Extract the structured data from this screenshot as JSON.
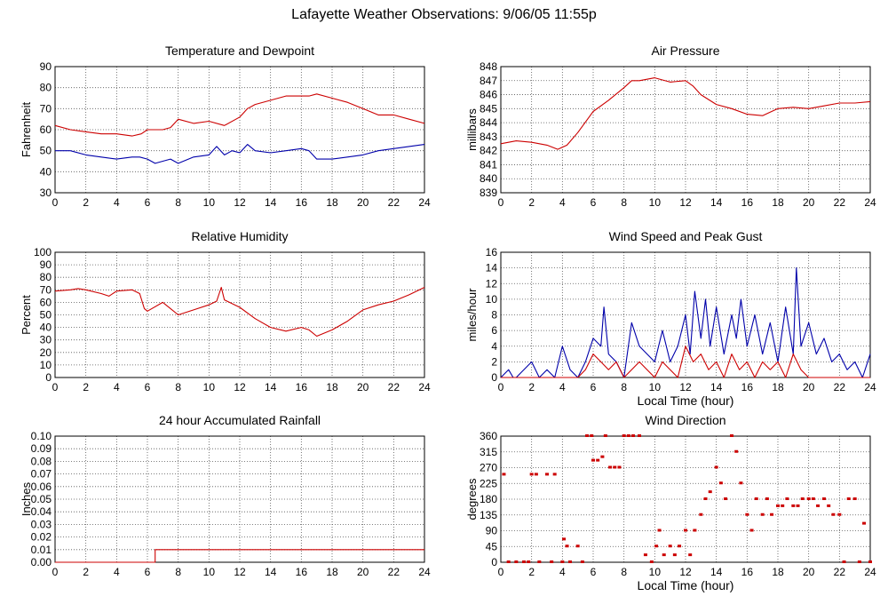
{
  "page_title": "Lafayette Weather Observations: 9/06/05 11:55p",
  "colors": {
    "red": "#cc0000",
    "blue": "#0000aa",
    "grid": "#555555",
    "axis": "#000000"
  },
  "chart_data": [
    {
      "id": "temp",
      "type": "line",
      "title": "Temperature and Dewpoint",
      "xlabel": "",
      "ylabel": "Fahrenheit",
      "xlim": [
        0,
        24
      ],
      "ylim": [
        30,
        90
      ],
      "xticks": [
        0,
        2,
        4,
        6,
        8,
        10,
        12,
        14,
        16,
        18,
        20,
        22,
        24
      ],
      "yticks": [
        30,
        40,
        50,
        60,
        70,
        80,
        90
      ],
      "grid": true,
      "series": [
        {
          "color": "#cc0000",
          "x": [
            0,
            1,
            2,
            3,
            4,
            5,
            5.6,
            6,
            7,
            7.5,
            8,
            9,
            10,
            11,
            12,
            12.5,
            13,
            14,
            15,
            16,
            16.5,
            17,
            18,
            19,
            20,
            21,
            22,
            23,
            24
          ],
          "values": [
            62,
            60,
            59,
            58,
            58,
            57,
            58,
            60,
            60,
            61,
            65,
            63,
            64,
            62,
            66,
            70,
            72,
            74,
            76,
            76,
            76,
            77,
            75,
            73,
            70,
            67,
            67,
            65,
            63
          ]
        },
        {
          "color": "#0000aa",
          "x": [
            0,
            1,
            2,
            3,
            4,
            5,
            5.5,
            6,
            6.5,
            7,
            7.5,
            8,
            9,
            10,
            10.5,
            11,
            11.5,
            12,
            12.5,
            13,
            14,
            15,
            16,
            16.5,
            17,
            18,
            19,
            20,
            21,
            22,
            23,
            24
          ],
          "values": [
            50,
            50,
            48,
            47,
            46,
            47,
            47,
            46,
            44,
            45,
            46,
            44,
            47,
            48,
            52,
            48,
            50,
            49,
            53,
            50,
            49,
            50,
            51,
            50,
            46,
            46,
            47,
            48,
            50,
            51,
            52,
            53
          ]
        }
      ]
    },
    {
      "id": "pressure",
      "type": "line",
      "title": "Air Pressure",
      "xlabel": "",
      "ylabel": "millibars",
      "xlim": [
        0,
        24
      ],
      "ylim": [
        839,
        848
      ],
      "xticks": [
        0,
        2,
        4,
        6,
        8,
        10,
        12,
        14,
        16,
        18,
        20,
        22,
        24
      ],
      "yticks": [
        839,
        840,
        841,
        842,
        843,
        844,
        845,
        846,
        847,
        848
      ],
      "grid": true,
      "series": [
        {
          "color": "#cc0000",
          "x": [
            0,
            1,
            2,
            3,
            3.7,
            4.3,
            5,
            6,
            7,
            8,
            8.5,
            9,
            10,
            11,
            12,
            12.5,
            13,
            14,
            15,
            16,
            17,
            18,
            19,
            20,
            21,
            22,
            23,
            24
          ],
          "values": [
            842.5,
            842.7,
            842.6,
            842.4,
            842.1,
            842.4,
            843.3,
            844.8,
            845.6,
            846.5,
            847,
            847,
            847.2,
            846.9,
            847,
            846.6,
            846,
            845.3,
            845,
            844.6,
            844.5,
            845,
            845.1,
            845,
            845.2,
            845.4,
            845.4,
            845.5
          ]
        }
      ]
    },
    {
      "id": "humidity",
      "type": "line",
      "title": "Relative Humidity",
      "xlabel": "",
      "ylabel": "Percent",
      "xlim": [
        0,
        24
      ],
      "ylim": [
        0,
        100
      ],
      "xticks": [
        0,
        2,
        4,
        6,
        8,
        10,
        12,
        14,
        16,
        18,
        20,
        22,
        24
      ],
      "yticks": [
        0,
        10,
        20,
        30,
        40,
        50,
        60,
        70,
        80,
        90,
        100
      ],
      "grid": true,
      "series": [
        {
          "color": "#cc0000",
          "x": [
            0,
            1,
            1.5,
            2,
            3,
            3.5,
            4,
            5,
            5.5,
            5.8,
            6,
            7,
            7.5,
            8,
            9,
            10,
            10.5,
            10.8,
            11,
            12,
            13,
            14,
            15,
            16,
            16.5,
            17,
            18,
            19,
            20,
            21,
            22,
            23,
            24
          ],
          "values": [
            69,
            70,
            71,
            70,
            67,
            65,
            69,
            70,
            67,
            55,
            53,
            60,
            55,
            50,
            54,
            58,
            61,
            72,
            62,
            56,
            47,
            40,
            37,
            40,
            38,
            33,
            38,
            45,
            54,
            58,
            61,
            66,
            72
          ]
        }
      ]
    },
    {
      "id": "wind",
      "type": "line",
      "title": "Wind Speed and Peak Gust",
      "xlabel": "Local Time (hour)",
      "ylabel": "miles/hour",
      "xlim": [
        0,
        24
      ],
      "ylim": [
        0,
        16
      ],
      "xticks": [
        0,
        2,
        4,
        6,
        8,
        10,
        12,
        14,
        16,
        18,
        20,
        22,
        24
      ],
      "yticks": [
        0,
        2,
        4,
        6,
        8,
        10,
        12,
        14,
        16
      ],
      "grid": true,
      "series": [
        {
          "color": "#0000aa",
          "x": [
            0,
            0.5,
            0.8,
            1,
            2,
            2.5,
            3,
            3.5,
            4,
            4.5,
            5,
            5.5,
            6,
            6.5,
            6.7,
            7,
            7.5,
            8,
            8.5,
            9,
            9.5,
            10,
            10.5,
            11,
            11.5,
            12,
            12.3,
            12.6,
            13,
            13.3,
            13.6,
            14,
            14.5,
            15,
            15.3,
            15.6,
            16,
            16.5,
            17,
            17.5,
            18,
            18.5,
            19,
            19.2,
            19.5,
            20,
            20.5,
            21,
            21.5,
            22,
            22.5,
            23,
            23.5,
            24
          ],
          "values": [
            0,
            1,
            0,
            0,
            2,
            0,
            1,
            0,
            4,
            1,
            0,
            2,
            5,
            4,
            9,
            3,
            2,
            0,
            7,
            4,
            3,
            2,
            6,
            2,
            4,
            8,
            3,
            11,
            5,
            10,
            4,
            9,
            3,
            8,
            5,
            10,
            4,
            8,
            3,
            7,
            2,
            9,
            3,
            14,
            4,
            7,
            3,
            5,
            2,
            3,
            1,
            2,
            0,
            3
          ]
        },
        {
          "color": "#cc0000",
          "x": [
            0,
            1,
            2,
            3,
            4,
            5,
            5.5,
            6,
            6.5,
            7,
            7.5,
            8,
            8.5,
            9,
            9.5,
            10,
            10.5,
            11,
            11.5,
            12,
            12.5,
            13,
            13.5,
            14,
            14.5,
            15,
            15.5,
            16,
            16.5,
            17,
            17.5,
            18,
            18.5,
            19,
            19.5,
            20,
            21,
            22,
            23,
            24
          ],
          "values": [
            0,
            0,
            0,
            0,
            0,
            0,
            1,
            3,
            2,
            1,
            2,
            0,
            1,
            2,
            1,
            0,
            2,
            1,
            0,
            4,
            2,
            3,
            1,
            2,
            0,
            3,
            1,
            2,
            0,
            2,
            1,
            2,
            0,
            3,
            1,
            0,
            0,
            0,
            0,
            0
          ]
        }
      ]
    },
    {
      "id": "rain",
      "type": "line",
      "title": "24 hour Accumulated Rainfall",
      "xlabel": "",
      "ylabel": "Inches",
      "xlim": [
        0,
        24
      ],
      "ylim": [
        0,
        0.1
      ],
      "xticks": [
        0,
        2,
        4,
        6,
        8,
        10,
        12,
        14,
        16,
        18,
        20,
        22,
        24
      ],
      "yticks": [
        "0.00",
        "0.01",
        "0.02",
        "0.03",
        "0.04",
        "0.05",
        "0.06",
        "0.07",
        "0.08",
        "0.09",
        "0.10"
      ],
      "grid": true,
      "series": [
        {
          "color": "#cc0000",
          "x": [
            0,
            6.5,
            6.5,
            24
          ],
          "values": [
            0,
            0,
            0.01,
            0.01
          ]
        }
      ]
    },
    {
      "id": "direction",
      "type": "scatter",
      "title": "Wind Direction",
      "xlabel": "Local Time (hour)",
      "ylabel": "degrees",
      "xlim": [
        0,
        24
      ],
      "ylim": [
        0,
        360
      ],
      "xticks": [
        0,
        2,
        4,
        6,
        8,
        10,
        12,
        14,
        16,
        18,
        20,
        22,
        24
      ],
      "yticks": [
        0,
        45,
        90,
        135,
        180,
        225,
        270,
        315,
        360
      ],
      "grid": true,
      "series": [
        {
          "color": "#cc0000",
          "x": [
            0.2,
            0.5,
            1,
            1.5,
            1.8,
            2,
            2.3,
            2.5,
            3,
            3.3,
            3.5,
            4,
            4.1,
            4.3,
            4.5,
            5,
            5.3,
            5.6,
            5.9,
            6,
            6.3,
            6.6,
            6.8,
            7.1,
            7.4,
            7.7,
            8,
            8.3,
            8.6,
            9,
            9.4,
            9.8,
            10.1,
            10.3,
            10.6,
            11,
            11.3,
            11.6,
            12,
            12.3,
            12.6,
            13,
            13.3,
            13.6,
            14,
            14.3,
            14.6,
            15,
            15.3,
            15.6,
            16,
            16.3,
            16.6,
            17,
            17.3,
            17.6,
            18,
            18.3,
            18.6,
            19,
            19.3,
            19.6,
            20,
            20.3,
            20.6,
            21,
            21.3,
            21.6,
            22,
            22.3,
            22.6,
            23,
            23.3,
            23.6,
            24
          ],
          "values": [
            250,
            0,
            0,
            0,
            0,
            250,
            250,
            0,
            250,
            0,
            250,
            0,
            65,
            45,
            0,
            45,
            0,
            360,
            360,
            290,
            290,
            300,
            360,
            270,
            270,
            270,
            360,
            360,
            360,
            360,
            20,
            0,
            45,
            90,
            20,
            45,
            20,
            45,
            90,
            20,
            90,
            135,
            180,
            200,
            270,
            225,
            180,
            360,
            315,
            225,
            135,
            90,
            180,
            135,
            180,
            135,
            160,
            160,
            180,
            160,
            160,
            180,
            180,
            180,
            160,
            180,
            160,
            135,
            135,
            0,
            180,
            180,
            0,
            110,
            0
          ]
        }
      ]
    }
  ]
}
